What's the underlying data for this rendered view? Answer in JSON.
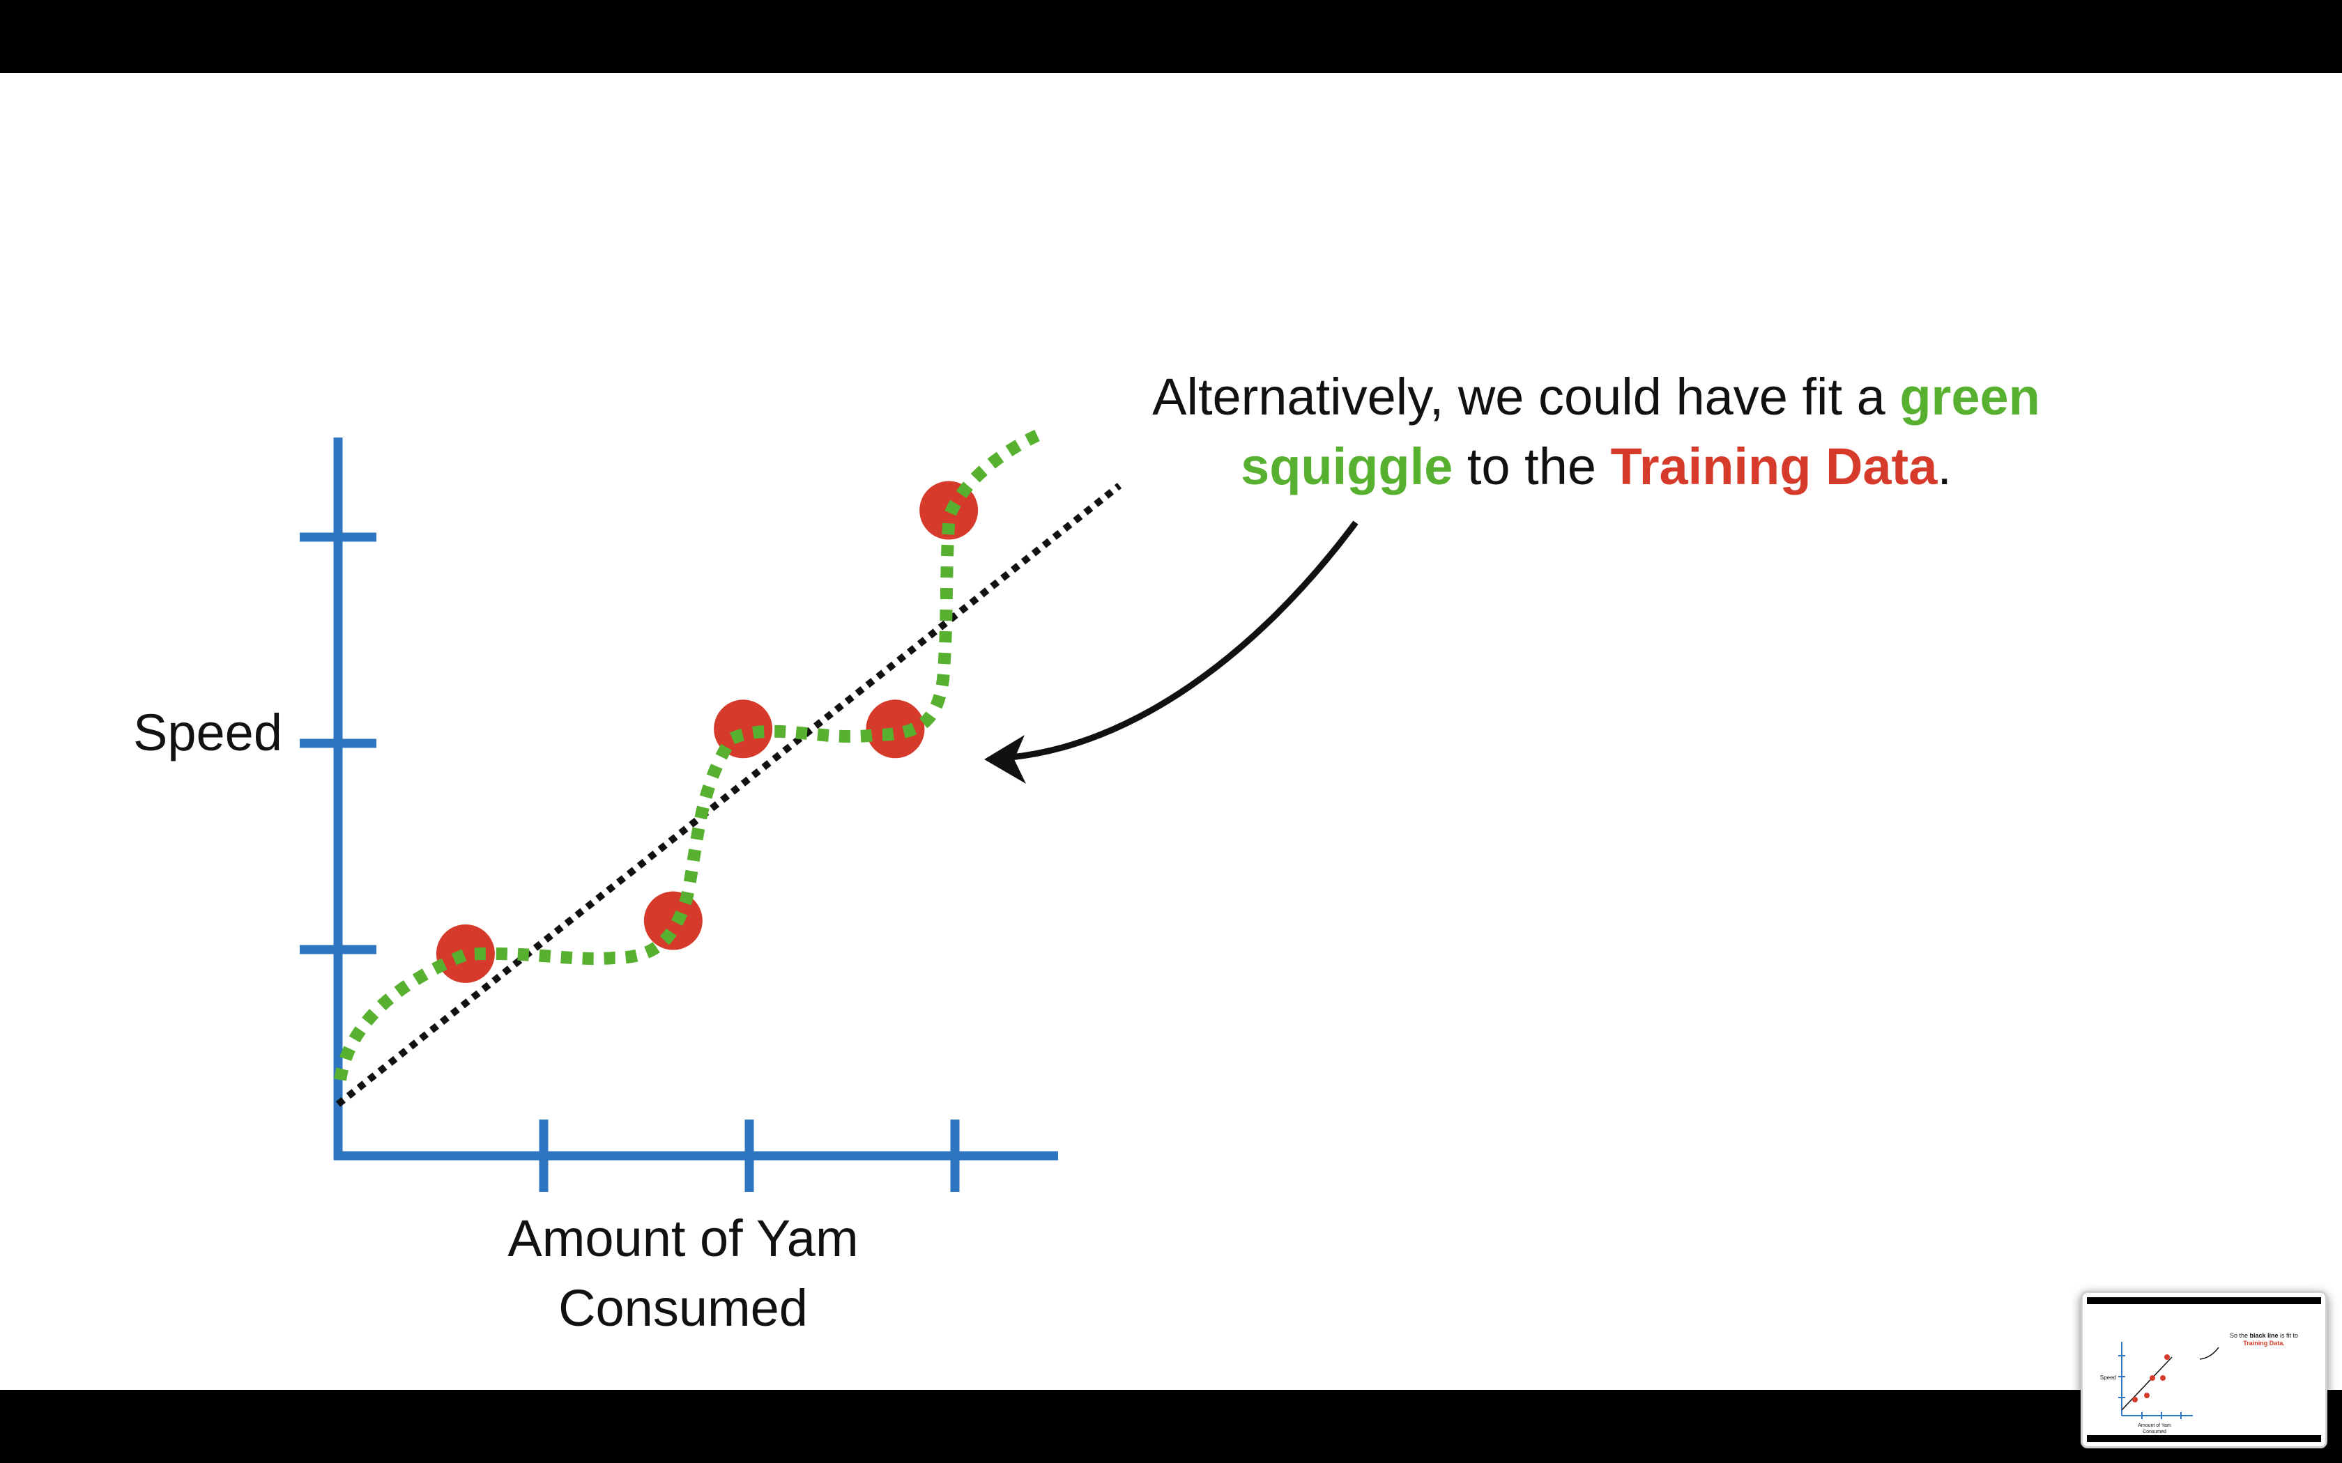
{
  "slide": {
    "callout": {
      "prefix": "Alternatively, we could have fit a",
      "green_phrase": "green squiggle",
      "middle": "to the",
      "red_phrase": "Training Data",
      "suffix": "."
    }
  },
  "chart_data": {
    "type": "scatter",
    "title": "",
    "xlabel_line1": "Amount of Yam",
    "xlabel_line2": "Consumed",
    "ylabel": "Speed",
    "xlim": [
      0,
      3.5
    ],
    "ylim": [
      0,
      3
    ],
    "x_ticks": [
      1,
      2,
      3
    ],
    "y_ticks": [
      1,
      2,
      3
    ],
    "grid": false,
    "points": [
      {
        "x": 0.62,
        "y": 0.98
      },
      {
        "x": 1.63,
        "y": 1.14
      },
      {
        "x": 1.97,
        "y": 2.07
      },
      {
        "x": 2.71,
        "y": 2.07
      },
      {
        "x": 2.97,
        "y": 3.13
      }
    ],
    "lines": [
      {
        "kind": "black dotted straight line",
        "from": {
          "x": 0.0,
          "y": 0.25
        },
        "to": {
          "x": 3.8,
          "y": 3.25
        }
      },
      {
        "kind": "green dotted squiggle through training data"
      }
    ],
    "colors": {
      "axis": "#2f74c0",
      "point": "#d63a2a",
      "squiggle": "#58b030",
      "line": "#111111"
    }
  },
  "thumbnail": {
    "callout_prefix": "So the",
    "callout_bold": "black line",
    "callout_middle": "is fit to",
    "callout_red": "Training Data.",
    "ylabel": "Speed",
    "xlabel_line1": "Amount of Yam",
    "xlabel_line2": "Consumed"
  }
}
